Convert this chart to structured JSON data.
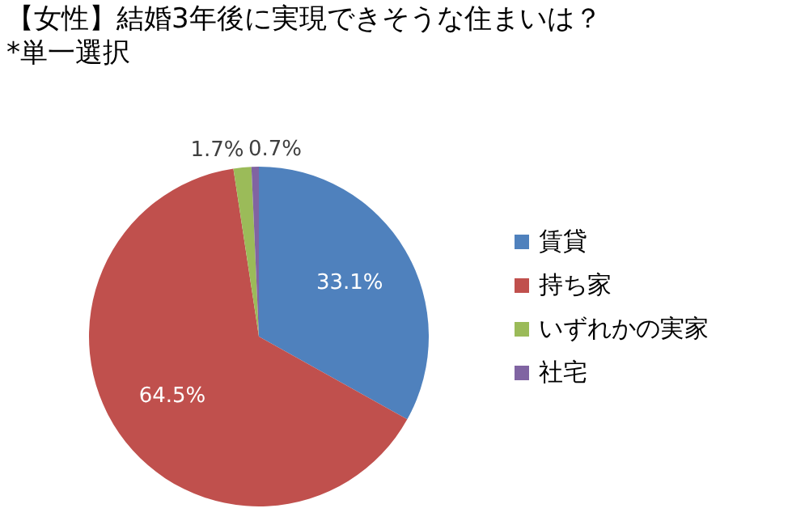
{
  "chart_data": {
    "type": "pie",
    "title": "【女性】結婚3年後に実現できそうな住まいは？",
    "subtitle": "*単一選択",
    "categories": [
      "賃貸",
      "持ち家",
      "いずれかの実家",
      "社宅"
    ],
    "values": [
      33.1,
      64.5,
      1.7,
      0.7
    ],
    "colors": [
      "#4f81bd",
      "#c0504d",
      "#9bbb59",
      "#8064a2"
    ],
    "value_labels": [
      "33.1%",
      "64.5%",
      "1.7%",
      "0.7%"
    ],
    "legend": "right"
  }
}
